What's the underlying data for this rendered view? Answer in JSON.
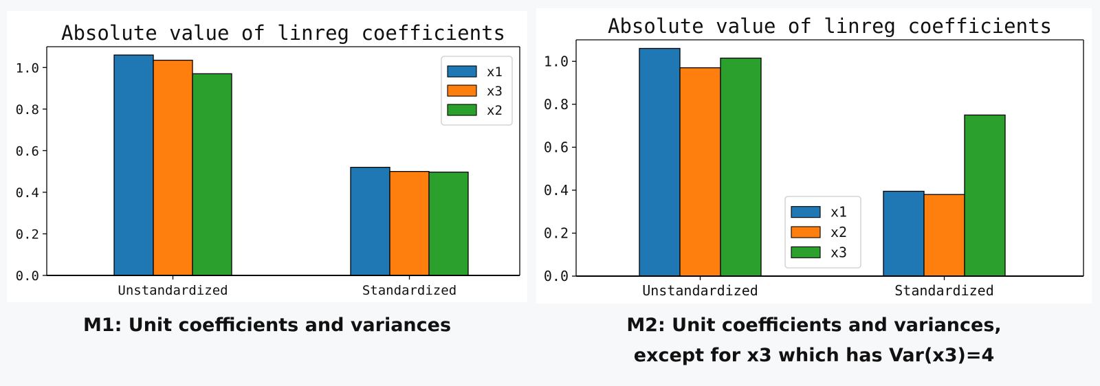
{
  "chart_data": [
    {
      "type": "bar",
      "title": "Absolute value of linreg coefficients",
      "xlabel": "",
      "ylabel": "",
      "categories": [
        "Unstandardized",
        "Standardized"
      ],
      "series": [
        {
          "name": "x1",
          "values": [
            1.06,
            0.52
          ],
          "color": "#1f77b4"
        },
        {
          "name": "x3",
          "values": [
            1.035,
            0.5
          ],
          "color": "#ff7f0e"
        },
        {
          "name": "x2",
          "values": [
            0.97,
            0.497
          ],
          "color": "#2ca02c"
        }
      ],
      "ylim": [
        0,
        1.1
      ],
      "yticks": [
        "0.0",
        "0.2",
        "0.4",
        "0.6",
        "0.8",
        "1.0"
      ],
      "grid": false,
      "legend_position": "top-right"
    },
    {
      "type": "bar",
      "title": "Absolute value of linreg coefficients",
      "xlabel": "",
      "ylabel": "",
      "categories": [
        "Unstandardized",
        "Standardized"
      ],
      "series": [
        {
          "name": "x1",
          "values": [
            1.06,
            0.395
          ],
          "color": "#1f77b4"
        },
        {
          "name": "x2",
          "values": [
            0.97,
            0.38
          ],
          "color": "#ff7f0e"
        },
        {
          "name": "x3",
          "values": [
            1.015,
            0.75
          ],
          "color": "#2ca02c"
        }
      ],
      "ylim": [
        0,
        1.1
      ],
      "yticks": [
        "0.0",
        "0.2",
        "0.4",
        "0.6",
        "0.8",
        "1.0"
      ],
      "grid": false,
      "legend_position": "bottom-center"
    }
  ],
  "captions": {
    "m1": [
      "M1: Unit coefficients and variances"
    ],
    "m2": [
      "M2: Unit coefficients and variances,",
      "except for x3 which has Var(x3)=4"
    ]
  }
}
